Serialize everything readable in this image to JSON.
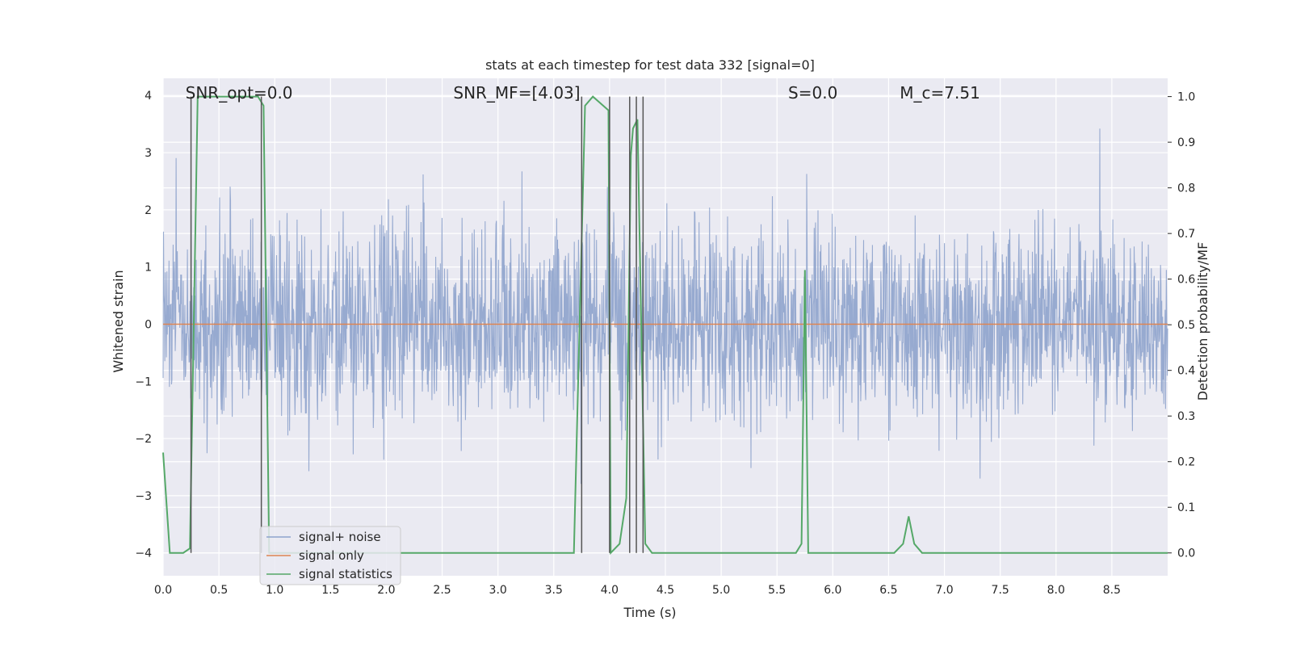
{
  "chart_data": {
    "type": "line",
    "title": "stats at each timestep for test data 332 [signal=0]",
    "xlabel": "Time (s)",
    "ylabel_left": "Whitened strain",
    "ylabel_right": "Detection probability/MF",
    "xlim": [
      0.0,
      9.0
    ],
    "ylim_left": [
      -4.4,
      4.3
    ],
    "ylim_right": [
      -0.05,
      1.04
    ],
    "x_ticks": [
      0.0,
      0.5,
      1.0,
      1.5,
      2.0,
      2.5,
      3.0,
      3.5,
      4.0,
      4.5,
      5.0,
      5.5,
      6.0,
      6.5,
      7.0,
      7.5,
      8.0,
      8.5
    ],
    "x_tick_labels": [
      "0.0",
      "0.5",
      "1.0",
      "1.5",
      "2.0",
      "2.5",
      "3.0",
      "3.5",
      "4.0",
      "4.5",
      "5.0",
      "5.5",
      "6.0",
      "6.5",
      "7.0",
      "7.5",
      "8.0",
      "8.5"
    ],
    "y_left_ticks": [
      -4,
      -3,
      -2,
      -1,
      0,
      1,
      2,
      3,
      4
    ],
    "y_left_tick_labels": [
      "−4",
      "−3",
      "−2",
      "−1",
      "0",
      "1",
      "2",
      "3",
      "4"
    ],
    "y_right_ticks": [
      0.0,
      0.1,
      0.2,
      0.3,
      0.4,
      0.5,
      0.6,
      0.7,
      0.8,
      0.9,
      1.0
    ],
    "y_right_tick_labels": [
      "0.0",
      "0.1",
      "0.2",
      "0.3",
      "0.4",
      "0.5",
      "0.6",
      "0.7",
      "0.8",
      "0.9",
      "1.0"
    ],
    "grid": true,
    "legend_position": "lower-left",
    "annotations": [
      {
        "text": "SNR_opt=0.0",
        "x": 0.2,
        "y": 4.0
      },
      {
        "text": "SNR_MF=[4.03]",
        "x": 2.6,
        "y": 4.0
      },
      {
        "text": "S=0.0",
        "x": 5.6,
        "y": 4.0
      },
      {
        "text": "M_c=7.51",
        "x": 6.6,
        "y": 4.0
      }
    ],
    "series": [
      {
        "name": "signal+ noise",
        "axis": "left",
        "color": "#8ea3cc",
        "noise_std": 0.85,
        "noise_peak": 3.5,
        "samples": 2400
      },
      {
        "name": "signal only",
        "axis": "left",
        "color": "#dd8452",
        "x": [
          0.0,
          9.0
        ],
        "y": [
          0.0,
          0.0
        ]
      },
      {
        "name": "signal statistics",
        "axis": "right",
        "color": "#55a868",
        "x": [
          0.0,
          0.06,
          0.18,
          0.24,
          0.31,
          0.85,
          0.9,
          0.95,
          3.68,
          3.78,
          3.85,
          3.99,
          4.01,
          4.09,
          4.15,
          4.19,
          4.21,
          4.25,
          4.32,
          4.38,
          5.67,
          5.72,
          5.75,
          5.78,
          5.85,
          6.55,
          6.63,
          6.68,
          6.73,
          6.8,
          7.3,
          7.4,
          7.5,
          9.0
        ],
        "y": [
          0.22,
          0.0,
          0.0,
          0.01,
          1.0,
          1.0,
          0.98,
          0.0,
          0.0,
          0.98,
          1.0,
          0.97,
          0.0,
          0.02,
          0.12,
          0.87,
          0.93,
          0.95,
          0.02,
          0.0,
          0.0,
          0.02,
          0.62,
          0.0,
          0.0,
          0.0,
          0.02,
          0.08,
          0.02,
          0.0,
          0.0,
          0.0,
          0.0,
          0.0
        ]
      }
    ],
    "vertical_markers": {
      "color": "#555555",
      "x": [
        0.25,
        0.88,
        3.75,
        4.0,
        4.18,
        4.24,
        4.3
      ]
    }
  }
}
